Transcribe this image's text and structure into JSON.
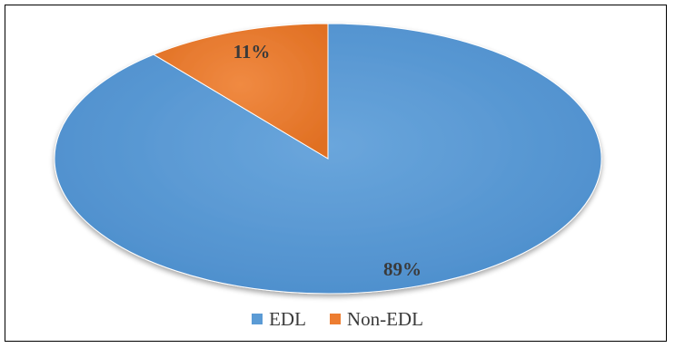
{
  "chart_data": {
    "type": "pie",
    "categories": [
      "EDL",
      "Non-EDL"
    ],
    "values": [
      89,
      11
    ],
    "data_labels": [
      "89%",
      "11%"
    ],
    "colors": [
      "#5b9bd5",
      "#ed7d31"
    ],
    "legend_position": "bottom",
    "title": ""
  },
  "legend": {
    "items": [
      {
        "label": "EDL",
        "color": "#5b9bd5"
      },
      {
        "label": "Non-EDL",
        "color": "#ed7d31"
      }
    ]
  }
}
